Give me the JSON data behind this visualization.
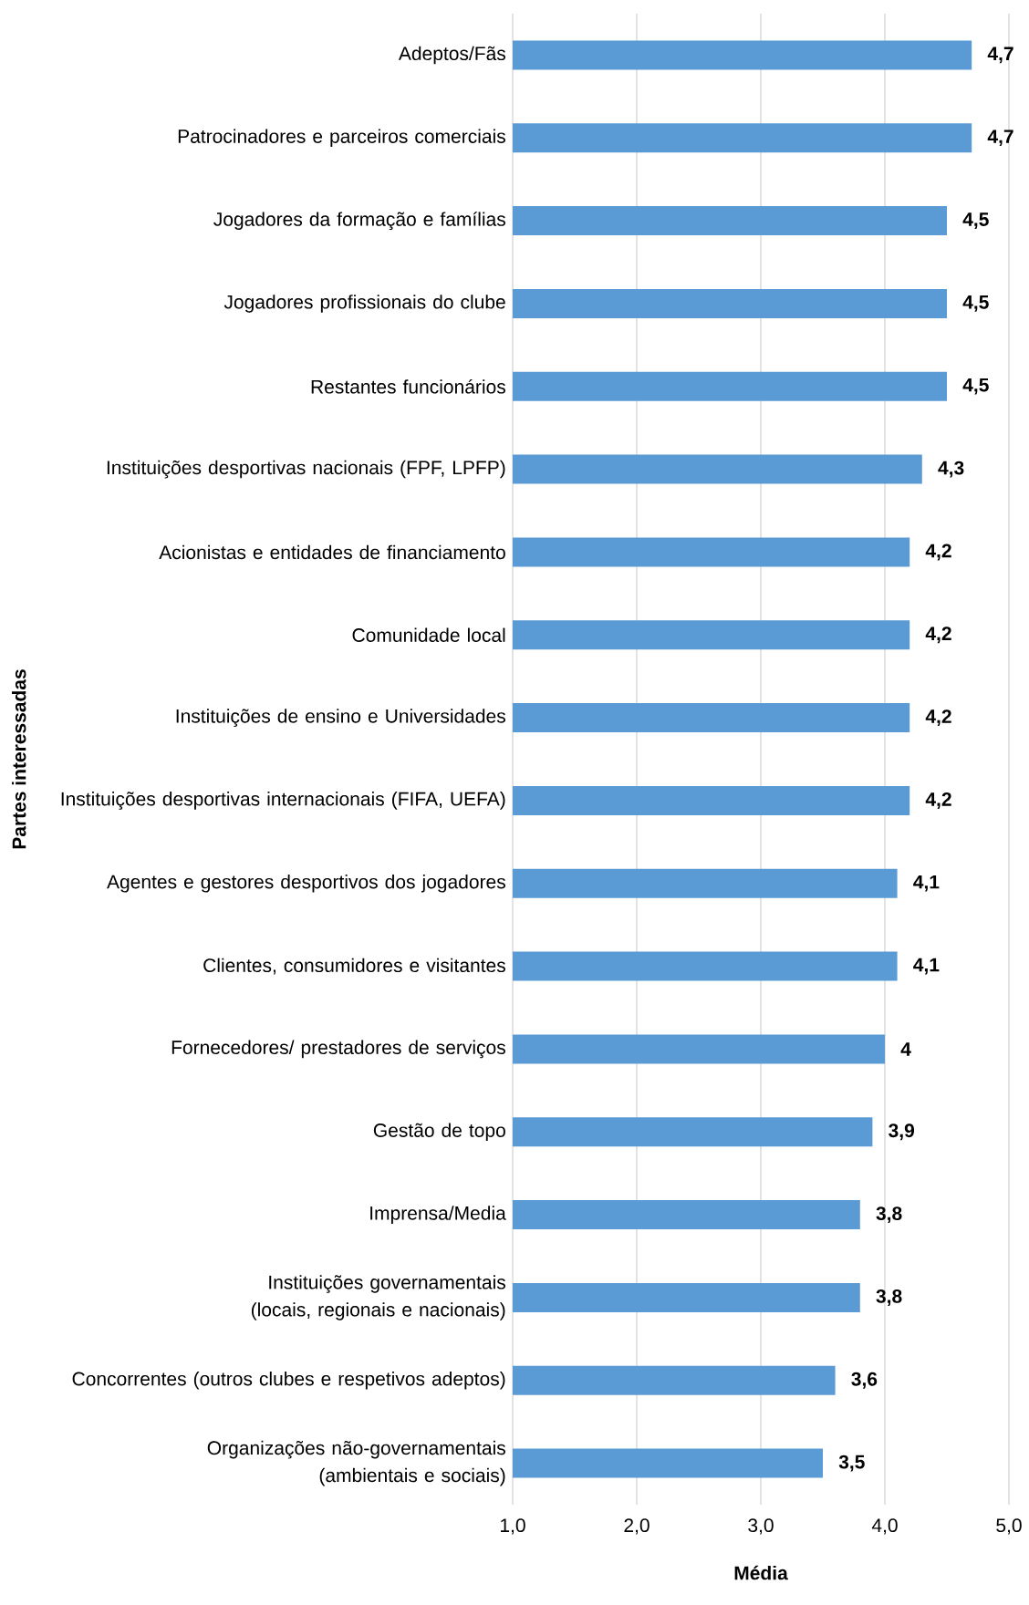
{
  "chart_data": {
    "type": "bar",
    "orientation": "horizontal",
    "xlabel": "Média",
    "ylabel": "Partes interessadas",
    "categories": [
      "Adeptos/Fãs",
      "Patrocinadores e parceiros comerciais",
      "Jogadores da formação e famílias",
      "Jogadores profissionais do clube",
      "Restantes funcionários",
      "Instituições desportivas nacionais (FPF, LPFP)",
      "Acionistas e entidades de financiamento",
      "Comunidade local",
      "Instituições de ensino e Universidades",
      "Instituições desportivas internacionais (FIFA, UEFA)",
      "Agentes e gestores desportivos dos jogadores",
      "Clientes, consumidores e visitantes",
      "Fornecedores/ prestadores de serviços",
      "Gestão de topo",
      "Imprensa/Media",
      "Instituições governamentais (locais, regionais e nacionais)",
      "Concorrentes (outros clubes e respetivos adeptos)",
      "Organizações não-governamentais (ambientais e sociais)"
    ],
    "values": [
      4.7,
      4.7,
      4.5,
      4.5,
      4.5,
      4.3,
      4.2,
      4.2,
      4.2,
      4.2,
      4.1,
      4.1,
      4,
      3.9,
      3.8,
      3.8,
      3.6,
      3.5
    ],
    "value_labels": [
      "4,7",
      "4,7",
      "4,5",
      "4,5",
      "4,5",
      "4,3",
      "4,2",
      "4,2",
      "4,2",
      "4,2",
      "4,1",
      "4,1",
      "4",
      "3,9",
      "3,8",
      "3,8",
      "3,6",
      "3,5"
    ],
    "color": "#5b9bd5",
    "xlim": [
      1,
      5
    ],
    "xticks": [
      {
        "value": 1,
        "label": "1,0"
      },
      {
        "value": 2,
        "label": "2,0"
      },
      {
        "value": 3,
        "label": "3,0"
      },
      {
        "value": 4,
        "label": "4,0"
      },
      {
        "value": 5,
        "label": "5,0"
      }
    ],
    "grid": "x"
  }
}
